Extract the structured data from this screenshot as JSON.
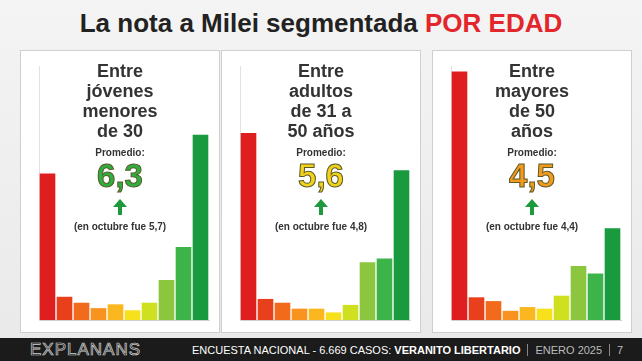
{
  "header": {
    "title": "La nota a Milei segmentada",
    "title_emphasis": "POR EDAD"
  },
  "chart_data": [
    {
      "type": "bar",
      "title": "Entre\njóvenes\nmenores\nde 30",
      "annotations": [
        "Promedio:",
        "6,3",
        "(en octubre fue 5,7)"
      ],
      "categories": [
        null,
        null,
        null,
        null,
        null,
        null,
        null,
        null,
        null,
        null
      ],
      "values": [
        27.1,
        4.3,
        3.2,
        2.2,
        2.9,
        1.8,
        3.2,
        7.4,
        13.5,
        34.3
      ],
      "colors": [
        "#df1f1f",
        "#e8401c",
        "#f26b1d",
        "#f7931e",
        "#fbb71f",
        "#f7e01c",
        "#cfe021",
        "#8cc63f",
        "#3cb44a",
        "#1a9a3e"
      ],
      "ylim": [
        0,
        47
      ],
      "yticks": [],
      "grid": false,
      "tick_labels": false
    },
    {
      "type": "bar",
      "title": "Entre\nadultos\nde 31 a\n50 años",
      "annotations": [
        "Promedio:",
        "5,6",
        "(en octubre fue 4,8)"
      ],
      "categories": [
        null,
        null,
        null,
        null,
        null,
        null,
        null,
        null,
        null,
        null
      ],
      "values": [
        34.6,
        3.9,
        3.2,
        2.1,
        2.1,
        1.4,
        2.8,
        10.7,
        11.4,
        27.7
      ],
      "colors": [
        "#df1f1f",
        "#e8401c",
        "#f26b1d",
        "#f7931e",
        "#fbb71f",
        "#f7e01c",
        "#cfe021",
        "#8cc63f",
        "#3cb44a",
        "#1a9a3e"
      ],
      "ylim": [
        0,
        47
      ],
      "yticks": [],
      "grid": false,
      "tick_labels": false
    },
    {
      "type": "bar",
      "title": "Entre\nmayores\nde 50\naños",
      "annotations": [
        "Promedio:",
        "4,5",
        "(en octubre fue 4,4)"
      ],
      "categories": [
        null,
        null,
        null,
        null,
        null,
        null,
        null,
        null,
        null,
        null
      ],
      "values": [
        46.0,
        4.2,
        3.5,
        1.7,
        2.4,
        2.1,
        4.5,
        10.0,
        8.6,
        17.0
      ],
      "colors": [
        "#df1f1f",
        "#e8401c",
        "#f26b1d",
        "#f7931e",
        "#fbb71f",
        "#f7e01c",
        "#cfe021",
        "#8cc63f",
        "#3cb44a",
        "#1a9a3e"
      ],
      "ylim": [
        0,
        47
      ],
      "yticks": [],
      "grid": false,
      "tick_labels": false
    }
  ],
  "footer": {
    "brand": "EXPLANANS",
    "text": "ENCUESTA NACIONAL - 6.669 CASOS:",
    "emphasis": "VERANITO LIBERTARIO",
    "date": "ENERO 2025",
    "page": "7"
  }
}
